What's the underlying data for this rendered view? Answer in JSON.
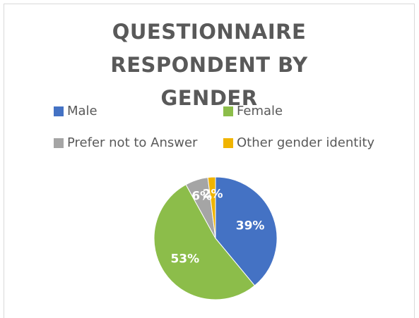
{
  "chart_data": {
    "type": "pie",
    "title": "QUESTIONNAIRE RESPONDENT BY GENDER",
    "categories": [
      "Male",
      "Female",
      "Prefer not to Answer",
      "Other gender identity"
    ],
    "values": [
      39,
      53,
      6,
      2
    ],
    "value_labels": [
      "39%",
      "53%",
      "6%",
      "2%"
    ],
    "colors": [
      "#4472c4",
      "#8cbd4a",
      "#a5a5a5",
      "#f0b400"
    ],
    "legend": "top"
  }
}
